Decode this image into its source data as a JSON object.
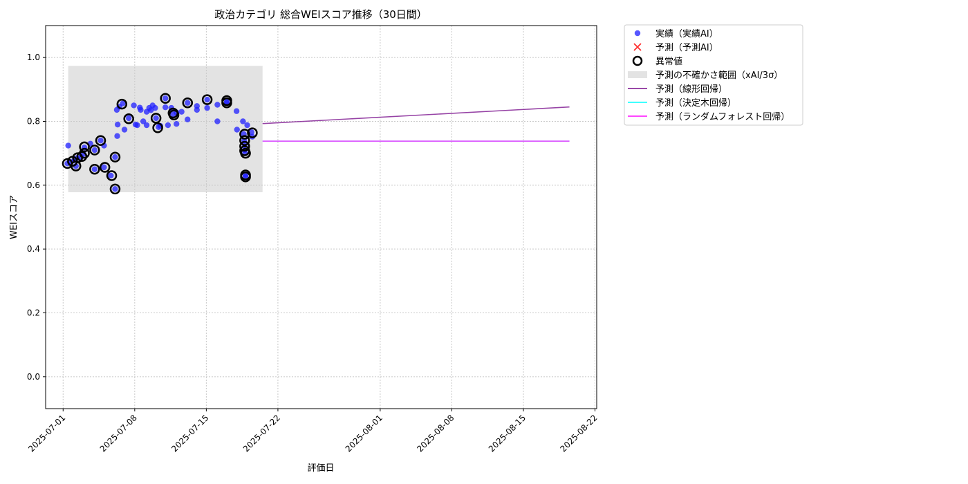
{
  "chart_data": {
    "type": "scatter",
    "title": "政治カテゴリ 総合WEIスコア推移（30日間）",
    "xlabel": "評価日",
    "ylabel": "WEIスコア",
    "xlim": [
      "2025-06-29T07:00",
      "2025-08-22T04:00"
    ],
    "ylim": [
      -0.1,
      1.1
    ],
    "grid": true,
    "legend_position": "outside-top-right",
    "x_ticks": [
      "2025-07-01",
      "2025-07-08",
      "2025-07-15",
      "2025-07-22",
      "2025-08-01",
      "2025-08-08",
      "2025-08-15",
      "2025-08-22"
    ],
    "y_ticks": [
      "0.0",
      "0.2",
      "0.4",
      "0.6",
      "0.8",
      "1.0"
    ],
    "colors": {
      "actual": "#1f1fff",
      "predicted_ai": "#ff3030",
      "anomaly": "#000000",
      "uncertainty": "#c8c8c8",
      "linear": "#8b2f9b",
      "decision_tree": "#22ffff",
      "random_forest": "#ff2bff"
    },
    "uncertainty_band": {
      "x_start": "2025-07-01T12:00",
      "x_end": "2025-07-20T12:00",
      "y_low": 0.578,
      "y_high": 0.974
    },
    "series": [
      {
        "name": "実績（実績AI）",
        "kind": "scatter",
        "points": [
          [
            "2025-07-01T12:00",
            0.724
          ],
          [
            "2025-07-01T10:00",
            0.668
          ],
          [
            "2025-07-01T18:00",
            0.672
          ],
          [
            "2025-07-02T02:00",
            0.678
          ],
          [
            "2025-07-02T06:00",
            0.66
          ],
          [
            "2025-07-02T09:00",
            0.685
          ],
          [
            "2025-07-02T18:00",
            0.688
          ],
          [
            "2025-07-03T00:00",
            0.698
          ],
          [
            "2025-07-03T02:00",
            0.718
          ],
          [
            "2025-07-03T16:00",
            0.73
          ],
          [
            "2025-07-04T02:00",
            0.71
          ],
          [
            "2025-07-04T02:00",
            0.65
          ],
          [
            "2025-07-04T16:00",
            0.74
          ],
          [
            "2025-07-05T00:00",
            0.724
          ],
          [
            "2025-07-05T00:00",
            0.656
          ],
          [
            "2025-07-05T16:00",
            0.63
          ],
          [
            "2025-07-06T02:00",
            0.688
          ],
          [
            "2025-07-06T02:00",
            0.588
          ],
          [
            "2025-07-06T06:00",
            0.836
          ],
          [
            "2025-07-06T07:00",
            0.754
          ],
          [
            "2025-07-06T08:00",
            0.79
          ],
          [
            "2025-07-06T12:00",
            0.846
          ],
          [
            "2025-07-06T20:00",
            0.856
          ],
          [
            "2025-07-07T00:00",
            0.774
          ],
          [
            "2025-07-07T10:00",
            0.81
          ],
          [
            "2025-07-07T22:00",
            0.85
          ],
          [
            "2025-07-08T02:00",
            0.79
          ],
          [
            "2025-07-08T06:00",
            0.788
          ],
          [
            "2025-07-08T12:00",
            0.843
          ],
          [
            "2025-07-08T14:00",
            0.836
          ],
          [
            "2025-07-08T20:00",
            0.8
          ],
          [
            "2025-07-09T04:00",
            0.788
          ],
          [
            "2025-07-09T04:00",
            0.83
          ],
          [
            "2025-07-09T10:00",
            0.842
          ],
          [
            "2025-07-09T14:00",
            0.835
          ],
          [
            "2025-07-09T18:00",
            0.85
          ],
          [
            "2025-07-10T00:00",
            0.842
          ],
          [
            "2025-07-10T02:00",
            0.81
          ],
          [
            "2025-07-10T08:00",
            0.782
          ],
          [
            "2025-07-10T12:00",
            0.786
          ],
          [
            "2025-07-11T00:00",
            0.872
          ],
          [
            "2025-07-11T00:00",
            0.844
          ],
          [
            "2025-07-11T06:00",
            0.788
          ],
          [
            "2025-07-11T14:00",
            0.842
          ],
          [
            "2025-07-11T18:00",
            0.822
          ],
          [
            "2025-07-12T02:00",
            0.828
          ],
          [
            "2025-07-12T02:00",
            0.792
          ],
          [
            "2025-07-12T14:00",
            0.83
          ],
          [
            "2025-07-13T04:00",
            0.858
          ],
          [
            "2025-07-13T04:00",
            0.806
          ],
          [
            "2025-07-14T02:00",
            0.836
          ],
          [
            "2025-07-14T02:00",
            0.848
          ],
          [
            "2025-07-15T02:00",
            0.868
          ],
          [
            "2025-07-15T02:00",
            0.842
          ],
          [
            "2025-07-16T02:00",
            0.8
          ],
          [
            "2025-07-16T02:00",
            0.852
          ],
          [
            "2025-07-17T00:00",
            0.862
          ],
          [
            "2025-07-17T00:00",
            0.858
          ],
          [
            "2025-07-17T23:00",
            0.832
          ],
          [
            "2025-07-18T00:00",
            0.774
          ],
          [
            "2025-07-18T14:00",
            0.8
          ],
          [
            "2025-07-18T16:00",
            0.76
          ],
          [
            "2025-07-18T17:00",
            0.74
          ],
          [
            "2025-07-18T18:00",
            0.726
          ],
          [
            "2025-07-18T18:00",
            0.71
          ],
          [
            "2025-07-18T19:00",
            0.7
          ],
          [
            "2025-07-18T20:00",
            0.632
          ],
          [
            "2025-07-18T20:00",
            0.626
          ],
          [
            "2025-07-19T00:00",
            0.788
          ],
          [
            "2025-07-19T10:00",
            0.766
          ],
          [
            "2025-07-19T12:00",
            0.752
          ]
        ]
      },
      {
        "name": "予測（予測AI）",
        "kind": "scatter-x",
        "points": []
      },
      {
        "name": "異常値",
        "kind": "ring",
        "points": [
          [
            "2025-07-01T10:00",
            0.668
          ],
          [
            "2025-07-01T22:00",
            0.675
          ],
          [
            "2025-07-02T06:00",
            0.66
          ],
          [
            "2025-07-02T10:00",
            0.686
          ],
          [
            "2025-07-02T20:00",
            0.69
          ],
          [
            "2025-07-03T02:00",
            0.7
          ],
          [
            "2025-07-03T02:00",
            0.72
          ],
          [
            "2025-07-04T02:00",
            0.71
          ],
          [
            "2025-07-04T02:00",
            0.65
          ],
          [
            "2025-07-04T16:00",
            0.74
          ],
          [
            "2025-07-05T02:00",
            0.656
          ],
          [
            "2025-07-05T18:00",
            0.63
          ],
          [
            "2025-07-06T02:00",
            0.688
          ],
          [
            "2025-07-06T02:00",
            0.588
          ],
          [
            "2025-07-06T18:00",
            0.854
          ],
          [
            "2025-07-07T10:00",
            0.808
          ],
          [
            "2025-07-10T02:00",
            0.81
          ],
          [
            "2025-07-10T06:00",
            0.78
          ],
          [
            "2025-07-11T00:00",
            0.872
          ],
          [
            "2025-07-11T18:00",
            0.826
          ],
          [
            "2025-07-11T20:00",
            0.82
          ],
          [
            "2025-07-13T04:00",
            0.858
          ],
          [
            "2025-07-15T02:00",
            0.868
          ],
          [
            "2025-07-17T00:00",
            0.865
          ],
          [
            "2025-07-17T00:00",
            0.858
          ],
          [
            "2025-07-18T18:00",
            0.76
          ],
          [
            "2025-07-18T18:00",
            0.74
          ],
          [
            "2025-07-18T18:00",
            0.722
          ],
          [
            "2025-07-18T18:00",
            0.708
          ],
          [
            "2025-07-18T20:00",
            0.7
          ],
          [
            "2025-07-18T20:00",
            0.632
          ],
          [
            "2025-07-18T20:00",
            0.626
          ],
          [
            "2025-07-19T12:00",
            0.764
          ]
        ]
      },
      {
        "name": "予測の不確かさ範囲（xAI/3σ）",
        "kind": "band",
        "points": []
      },
      {
        "name": "予測（線形回帰）",
        "kind": "line",
        "points": [
          [
            "2025-07-20T12:00",
            0.793
          ],
          [
            "2025-08-19T12:00",
            0.845
          ]
        ]
      },
      {
        "name": "予測（決定木回帰）",
        "kind": "line",
        "points": [
          [
            "2025-07-20T12:00",
            0.738
          ],
          [
            "2025-08-19T12:00",
            0.738
          ]
        ]
      },
      {
        "name": "予測（ランダムフォレスト回帰）",
        "kind": "line",
        "points": [
          [
            "2025-07-20T12:00",
            0.738
          ],
          [
            "2025-08-19T12:00",
            0.738
          ]
        ]
      }
    ]
  }
}
